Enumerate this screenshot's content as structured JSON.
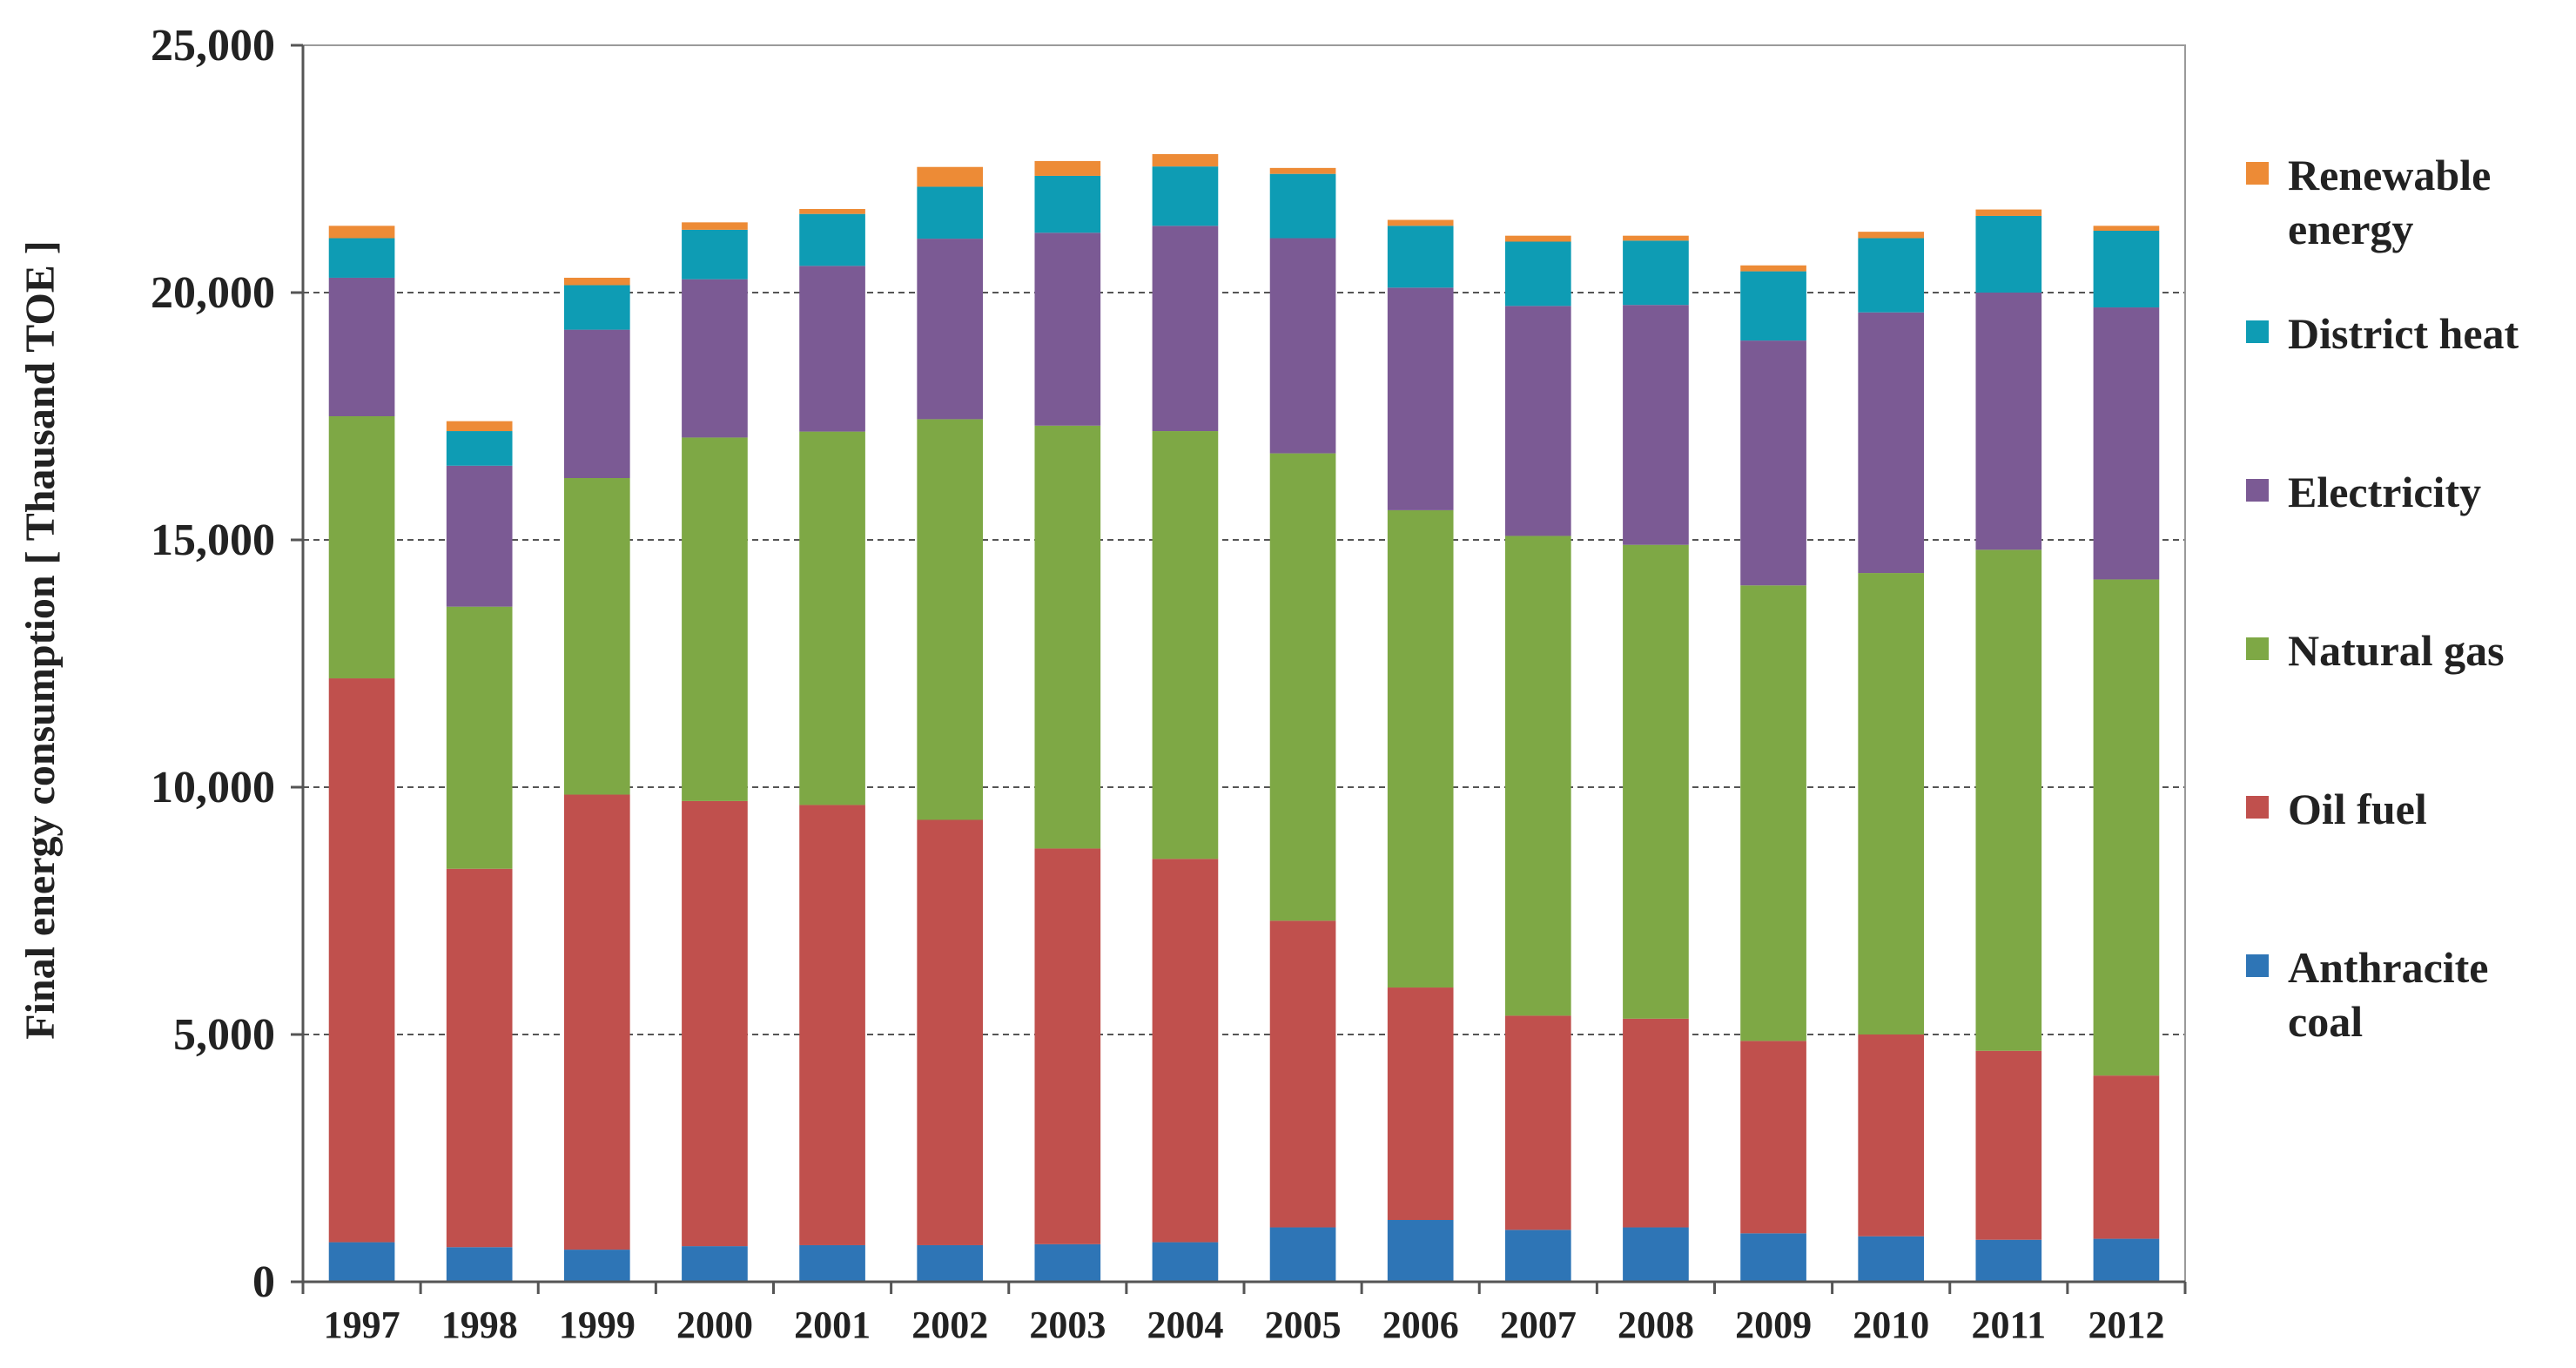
{
  "chart_data": {
    "type": "bar",
    "stacked": true,
    "title": "",
    "xlabel": "",
    "ylabel": "Final  energy consumption  [ Thausand  TOE ]",
    "ylim": [
      0,
      25000
    ],
    "yticks": [
      0,
      5000,
      10000,
      15000,
      20000,
      25000
    ],
    "ytick_labels": [
      "0",
      "5,000",
      "10,000",
      "15,000",
      "20,000",
      "25,000"
    ],
    "grid": "horizontal dashed",
    "legend_position": "right",
    "categories": [
      "1997",
      "1998",
      "1999",
      "2000",
      "2001",
      "2002",
      "2003",
      "2004",
      "2005",
      "2006",
      "2007",
      "2008",
      "2009",
      "2010",
      "2011",
      "2012"
    ],
    "series": [
      {
        "name": "Anthracite coal",
        "color": "#2e75b6",
        "values": [
          800,
          700,
          650,
          720,
          740,
          740,
          760,
          800,
          1100,
          1250,
          1050,
          1100,
          980,
          920,
          850,
          870
        ]
      },
      {
        "name": "Oil fuel",
        "color": "#c0504d",
        "values": [
          11400,
          7650,
          9200,
          9000,
          8900,
          8600,
          8000,
          7750,
          6200,
          4700,
          4330,
          4220,
          3890,
          4080,
          3820,
          3300
        ]
      },
      {
        "name": "Natural gas",
        "color": "#7ea845",
        "values": [
          5300,
          5300,
          6400,
          7350,
          7550,
          8100,
          8550,
          8650,
          9450,
          9650,
          9700,
          9580,
          9210,
          9330,
          10130,
          10030
        ]
      },
      {
        "name": "Electricity",
        "color": "#7b5a94",
        "values": [
          2800,
          2850,
          3000,
          3200,
          3350,
          3650,
          3900,
          4150,
          4350,
          4500,
          4650,
          4850,
          4950,
          5270,
          5200,
          5500
        ]
      },
      {
        "name": "District heat",
        "color": "#0e9cb4",
        "values": [
          800,
          700,
          900,
          1000,
          1050,
          1050,
          1150,
          1200,
          1300,
          1250,
          1300,
          1300,
          1400,
          1500,
          1550,
          1550
        ]
      },
      {
        "name": "Renewable energy",
        "color": "#ed8b36",
        "values": [
          250,
          200,
          150,
          150,
          100,
          400,
          300,
          250,
          120,
          120,
          120,
          100,
          120,
          130,
          130,
          100
        ]
      }
    ]
  }
}
